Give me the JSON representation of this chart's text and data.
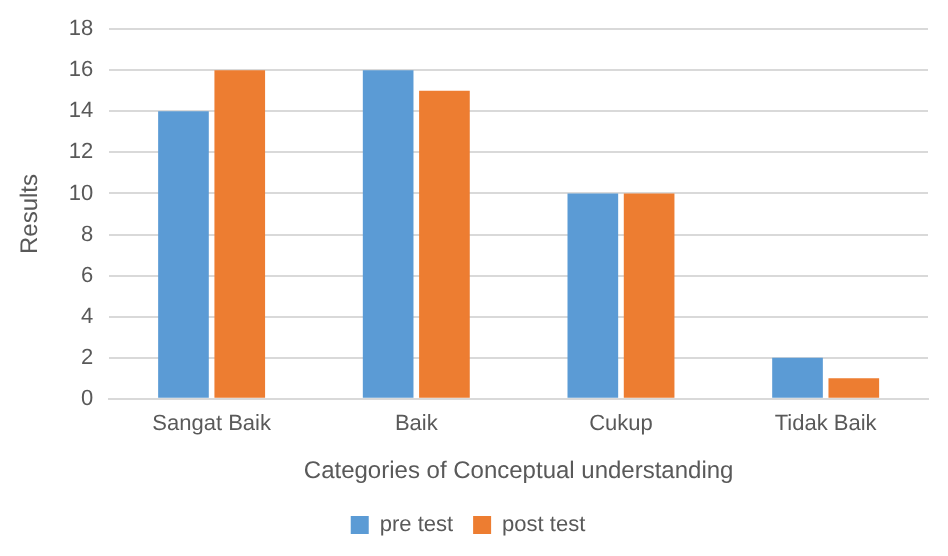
{
  "chart_data": {
    "type": "bar",
    "xlabel": "Categories of Conceptual understanding",
    "ylabel": "Results",
    "categories": [
      "Sangat Baik",
      "Baik",
      "Cukup",
      "Tidak Baik"
    ],
    "series": [
      {
        "name": "pre test",
        "color": "#5b9bd5",
        "values": [
          14,
          16,
          10,
          2
        ]
      },
      {
        "name": "post test",
        "color": "#ed7d31",
        "values": [
          16,
          15,
          10,
          1
        ]
      }
    ],
    "ylim": [
      0,
      18
    ],
    "yticks": [
      0,
      2,
      4,
      6,
      8,
      10,
      12,
      14,
      16,
      18
    ],
    "grid": "y",
    "legend": "bottom"
  }
}
